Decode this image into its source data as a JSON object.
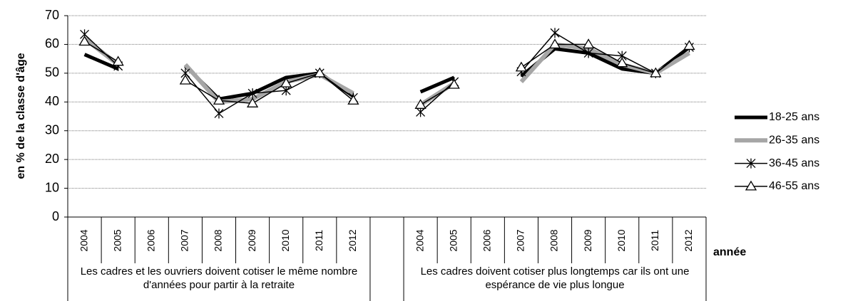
{
  "chart_data": {
    "type": "line",
    "y_label": "en % de la classe d'âge",
    "x_label": "année",
    "categories": [
      "2004",
      "2005",
      "2006",
      "2007",
      "2008",
      "2009",
      "2010",
      "2011",
      "2012",
      null,
      "2004",
      "2005",
      "2006",
      "2007",
      "2008",
      "2009",
      "2010",
      "2011",
      "2012"
    ],
    "groups": [
      "Les cadres et les ouvriers doivent cotiser le même nombre d'années pour partir à la retraite",
      "Les cadres doivent cotiser plus longtemps car ils ont une espérance de vie plus longue"
    ],
    "series": [
      {
        "name": "18-25 ans",
        "color": "#000000",
        "marker": "none",
        "values": [
          56.5,
          51.5,
          null,
          52.5,
          41,
          43,
          48.5,
          50,
          42,
          null,
          43.5,
          48.5,
          null,
          49,
          58.5,
          57,
          51.5,
          50,
          59
        ]
      },
      {
        "name": "26-35 ans",
        "color": "#a6a6a6",
        "marker": "none",
        "values": [
          62,
          53,
          null,
          53,
          40,
          41,
          47,
          49.5,
          43,
          null,
          39,
          46.5,
          null,
          47,
          60,
          58.5,
          53,
          50,
          57
        ]
      },
      {
        "name": "36-45 ans",
        "color": "#000000",
        "marker": "star",
        "values": [
          63.5,
          52.5,
          null,
          50,
          36,
          43,
          44,
          50,
          41.5,
          null,
          36.5,
          47,
          null,
          50.5,
          64,
          57,
          56,
          50,
          59
        ]
      },
      {
        "name": "46-55 ans",
        "color": "#000000",
        "marker": "triangle",
        "values": [
          61,
          54,
          null,
          47.5,
          40.5,
          39.5,
          46.5,
          50,
          40.5,
          null,
          39,
          46,
          null,
          52,
          60,
          60,
          53.5,
          50,
          59.5
        ]
      }
    ],
    "ylim": [
      0,
      70
    ],
    "yticks": [
      0,
      10,
      20,
      30,
      40,
      50,
      60,
      70
    ],
    "grid": true,
    "legend": "right"
  }
}
